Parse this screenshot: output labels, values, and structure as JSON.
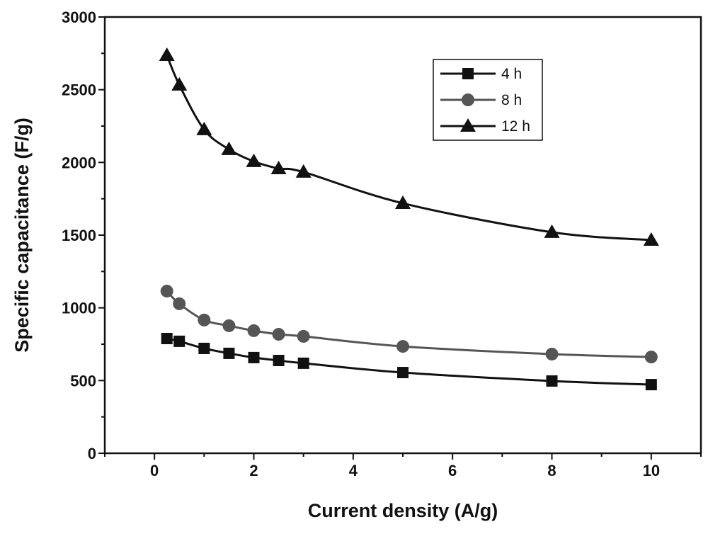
{
  "chart_data": {
    "type": "line",
    "title": "",
    "xlabel": "Current density (A/g)",
    "ylabel": "Specific capacitance (F/g)",
    "xlim": [
      -1,
      11
    ],
    "ylim": [
      0,
      3000
    ],
    "xticks": [
      0,
      2,
      4,
      6,
      8,
      10
    ],
    "yticks": [
      0,
      500,
      1000,
      1500,
      2000,
      2500,
      3000
    ],
    "grid": false,
    "legend_position": "top-right",
    "x": [
      0.25,
      0.5,
      1,
      1.5,
      2,
      2.5,
      3,
      5,
      8,
      10
    ],
    "series": [
      {
        "name": "4 h",
        "marker": "square",
        "color": "#111111",
        "values": [
          789,
          770,
          721,
          687,
          658,
          638,
          619,
          555,
          497,
          472
        ]
      },
      {
        "name": "8 h",
        "marker": "circle",
        "color": "#555555",
        "values": [
          1115,
          1028,
          916,
          877,
          843,
          818,
          804,
          735,
          682,
          662
        ]
      },
      {
        "name": "12 h",
        "marker": "triangle",
        "color": "#111111",
        "values": [
          2737,
          2533,
          2226,
          2090,
          2007,
          1958,
          1934,
          1719,
          1520,
          1466
        ]
      }
    ]
  }
}
